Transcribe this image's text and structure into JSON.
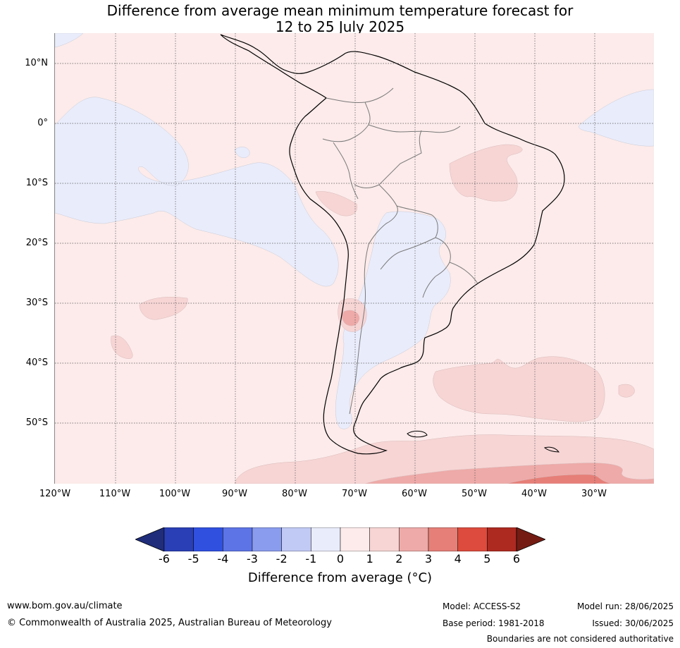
{
  "title": {
    "line1": "Difference from average mean minimum temperature forecast for",
    "line2": "12 to 25 July 2025"
  },
  "map": {
    "region": "South America",
    "lon_range": [
      -120,
      -20
    ],
    "lat_range": [
      -60,
      15
    ],
    "lat_ticks": [
      "10°N",
      "0°",
      "10°S",
      "20°S",
      "30°S",
      "40°S",
      "50°S"
    ],
    "lon_ticks": [
      "120°W",
      "110°W",
      "100°W",
      "90°W",
      "80°W",
      "70°W",
      "60°W",
      "50°W",
      "40°W",
      "30°W"
    ],
    "gridlines": true
  },
  "colorbar": {
    "label": "Difference from average (°C)",
    "ticks": [
      "-6",
      "-5",
      "-4",
      "-3",
      "-2",
      "-1",
      "0",
      "1",
      "2",
      "3",
      "4",
      "5",
      "6"
    ],
    "colors": [
      "#1f2d7a",
      "#2a3fb5",
      "#3050e0",
      "#5d74e6",
      "#8a9cee",
      "#c1c9f5",
      "#e9ecfb",
      "#fcebea",
      "#f7d5d5",
      "#eeaaa8",
      "#e67f78",
      "#dc4b3d",
      "#ad2a21",
      "#741c14"
    ]
  },
  "footer": {
    "website": "www.bom.gov.au/climate",
    "copyright": "© Commonwealth of Australia 2025, Australian Bureau of Meteorology",
    "model": "Model: ACCESS-S2",
    "base_period": "Base period: 1981-2018",
    "model_run": "Model run: 28/06/2025",
    "issued": "Issued: 30/06/2025",
    "disclaimer": "Boundaries are not considered authoritative"
  }
}
